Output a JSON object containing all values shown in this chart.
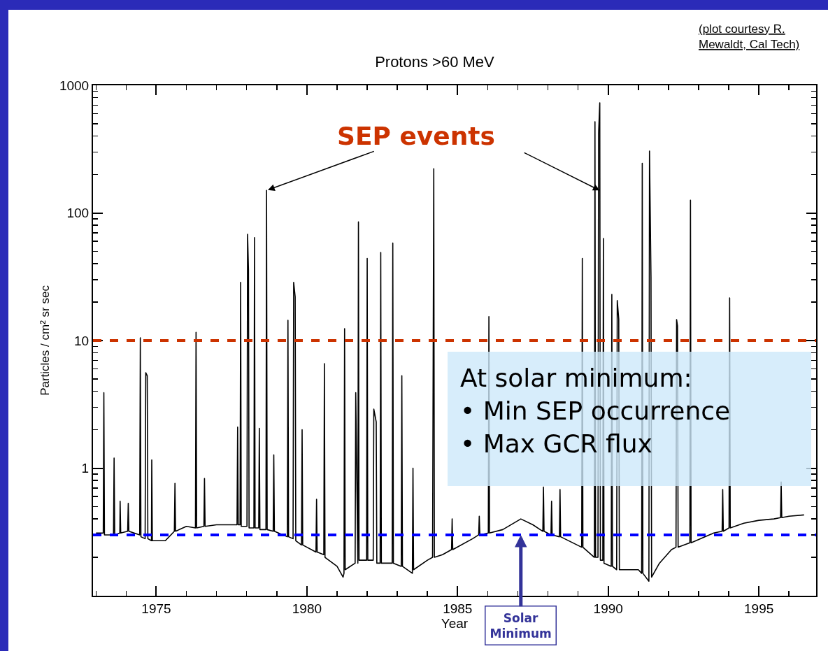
{
  "chart_data": {
    "type": "line",
    "title": "Protons >60 MeV",
    "xlabel": "Year",
    "ylabel": "Particles / cm² sr sec",
    "x": [
      1973.0,
      1973.24,
      1973.26,
      1973.28,
      1973.58,
      1973.6,
      1973.62,
      1973.79,
      1973.8,
      1973.82,
      1974.05,
      1974.07,
      1974.09,
      1974.45,
      1974.47,
      1974.49,
      1974.63,
      1974.65,
      1974.7,
      1974.72,
      1974.84,
      1974.85,
      1974.87,
      1975.3,
      1975.6,
      1975.62,
      1975.64,
      1976.0,
      1976.3,
      1976.32,
      1976.34,
      1976.58,
      1976.6,
      1976.62,
      1977.0,
      1977.5,
      1977.68,
      1977.7,
      1977.72,
      1977.78,
      1977.8,
      1977.82,
      1978.01,
      1978.03,
      1978.06,
      1978.08,
      1978.24,
      1978.26,
      1978.28,
      1978.4,
      1978.42,
      1978.44,
      1978.64,
      1978.66,
      1978.68,
      1978.88,
      1978.9,
      1978.92,
      1979.35,
      1979.37,
      1979.39,
      1979.54,
      1979.56,
      1979.61,
      1979.63,
      1979.82,
      1979.84,
      1979.86,
      1980.3,
      1980.32,
      1980.34,
      1980.56,
      1980.58,
      1980.6,
      1981.0,
      1981.2,
      1981.23,
      1981.25,
      1981.27,
      1981.6,
      1981.62,
      1981.69,
      1981.71,
      1981.73,
      1981.98,
      1982.0,
      1982.02,
      1982.2,
      1982.22,
      1982.3,
      1982.32,
      1982.43,
      1982.45,
      1982.47,
      1982.83,
      1982.85,
      1982.87,
      1983.13,
      1983.15,
      1983.17,
      1983.5,
      1983.52,
      1983.54,
      1984.0,
      1984.17,
      1984.19,
      1984.21,
      1984.23,
      1984.5,
      1984.8,
      1984.82,
      1984.84,
      1985.5,
      1985.7,
      1985.72,
      1985.74,
      1986.02,
      1986.04,
      1986.06,
      1986.5,
      1987.1,
      1987.5,
      1987.83,
      1987.85,
      1987.87,
      1988.1,
      1988.12,
      1988.14,
      1988.38,
      1988.4,
      1988.42,
      1989.12,
      1989.14,
      1989.16,
      1989.54,
      1989.56,
      1989.58,
      1989.66,
      1989.68,
      1989.72,
      1989.74,
      1989.82,
      1989.84,
      1989.86,
      1990.1,
      1990.12,
      1990.14,
      1990.28,
      1990.3,
      1990.35,
      1990.37,
      1991.0,
      1991.11,
      1991.13,
      1991.15,
      1991.35,
      1991.37,
      1991.42,
      1991.44,
      1991.7,
      1992.1,
      1992.25,
      1992.27,
      1992.3,
      1992.32,
      1992.71,
      1992.73,
      1992.75,
      1993.5,
      1993.78,
      1993.8,
      1993.82,
      1994.01,
      1994.03,
      1994.05,
      1994.5,
      1995.0,
      1995.5,
      1995.72,
      1995.74,
      1995.76,
      1996.0,
      1996.5
    ],
    "values": [
      0.31,
      0.31,
      3.9,
      0.3,
      0.3,
      1.2,
      0.3,
      0.31,
      0.55,
      0.31,
      0.32,
      0.53,
      0.32,
      0.3,
      10.5,
      0.29,
      0.28,
      5.6,
      5.3,
      0.28,
      0.27,
      1.16,
      0.27,
      0.27,
      0.32,
      0.76,
      0.32,
      0.35,
      0.34,
      11.6,
      0.34,
      0.35,
      0.83,
      0.35,
      0.36,
      0.36,
      0.36,
      2.1,
      0.36,
      0.36,
      28.6,
      0.35,
      0.35,
      68,
      36,
      0.34,
      0.34,
      64,
      0.34,
      0.34,
      2.05,
      0.33,
      0.33,
      150,
      0.33,
      0.32,
      1.27,
      0.32,
      0.29,
      14.4,
      0.29,
      0.28,
      28.6,
      22,
      0.27,
      0.25,
      2.0,
      0.25,
      0.22,
      0.57,
      0.22,
      0.21,
      6.6,
      0.2,
      0.17,
      0.14,
      0.15,
      12.4,
      0.16,
      0.18,
      3.9,
      0.18,
      85,
      0.19,
      0.19,
      44,
      0.19,
      0.19,
      2.9,
      2.3,
      0.18,
      0.18,
      49,
      0.18,
      0.18,
      58,
      0.18,
      0.17,
      5.3,
      0.17,
      0.15,
      1.0,
      0.16,
      0.19,
      0.2,
      6.9,
      222,
      0.2,
      0.21,
      0.23,
      0.4,
      0.23,
      0.28,
      0.3,
      0.42,
      0.3,
      0.31,
      15.4,
      0.31,
      0.33,
      0.4,
      0.36,
      0.32,
      0.71,
      0.32,
      0.3,
      0.55,
      0.3,
      0.29,
      0.68,
      0.29,
      0.24,
      44,
      0.24,
      0.2,
      518,
      0.2,
      0.2,
      418,
      730,
      0.19,
      0.19,
      63,
      0.18,
      0.17,
      23,
      0.17,
      0.16,
      20.6,
      14.7,
      0.16,
      0.16,
      0.15,
      245,
      0.15,
      0.13,
      305,
      31.6,
      0.14,
      0.18,
      0.23,
      0.24,
      14.6,
      13,
      0.24,
      0.26,
      126,
      0.26,
      0.31,
      0.32,
      0.68,
      0.32,
      0.34,
      21.6,
      0.34,
      0.37,
      0.39,
      0.4,
      0.41,
      0.78,
      0.41,
      0.42,
      0.43
    ],
    "color": "#000000",
    "marker": "none",
    "line_style": "solid",
    "log": true,
    "grid": false,
    "legend": false,
    "xlim": [
      1972.9,
      1996.9
    ],
    "xticks": [
      1975,
      1980,
      1985,
      1990,
      1995
    ],
    "ylim": [
      0.1,
      1000
    ],
    "yticks": [
      1,
      10,
      100,
      1000
    ],
    "ref_lines": [
      {
        "axis": "y",
        "value": 10,
        "color": "#cc3300",
        "line_style": "dashed"
      },
      {
        "axis": "y",
        "value": 0.3,
        "color": "#0000ff",
        "line_style": "dashed"
      }
    ],
    "annotations": [
      "(plot courtesy R.\nMewaldt, Cal Tech)",
      {
        "text": "SEP events",
        "x": 1978.66,
        "y": 150
      },
      "At solar minimum:\n• Min SEP occurrence\n• Max GCR flux",
      {
        "text": "Solar\nMinimum",
        "x": 1987.1,
        "y": 0.3
      }
    ]
  }
}
